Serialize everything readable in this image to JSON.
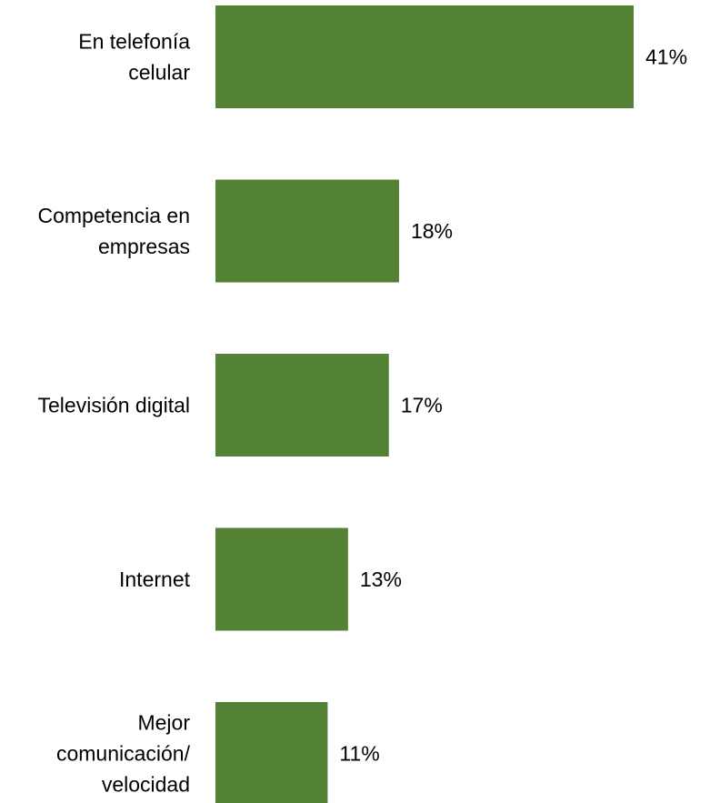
{
  "chart_data": {
    "type": "bar",
    "orientation": "horizontal",
    "categories": [
      [
        "En telefonía",
        "celular"
      ],
      [
        "Competencia en",
        "empresas"
      ],
      [
        "Televisión digital"
      ],
      [
        "Internet"
      ],
      [
        "Mejor",
        "comunicación/",
        "velocidad"
      ]
    ],
    "values": [
      41,
      18,
      17,
      13,
      11
    ],
    "value_labels": [
      "41%",
      "18%",
      "17%",
      "13%",
      "11%"
    ],
    "unit": "%",
    "xlim": [
      0,
      49
    ],
    "grid": false,
    "legend": "none",
    "colors": {
      "bar": "#548235",
      "text": "#000000",
      "background": "#ffffff"
    }
  }
}
